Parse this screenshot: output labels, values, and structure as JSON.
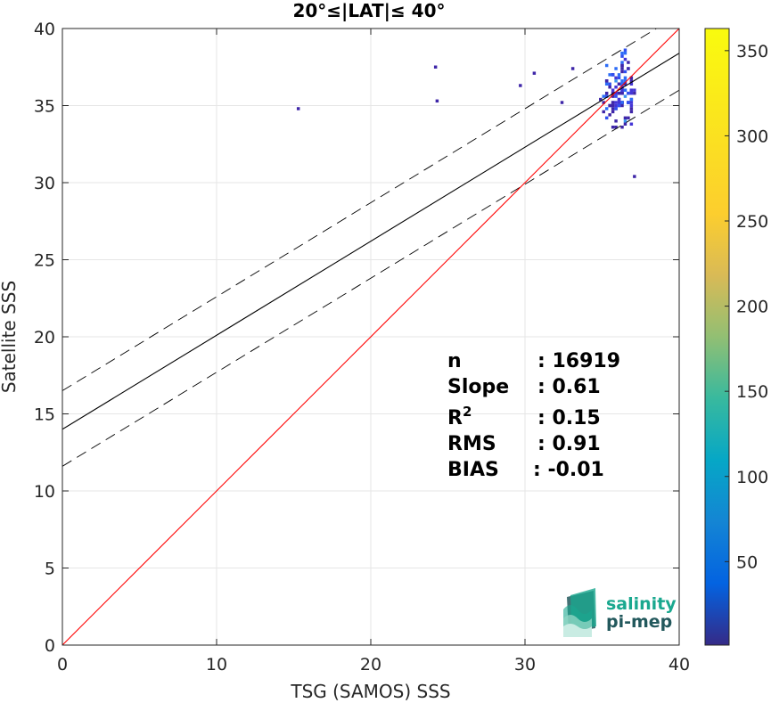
{
  "chart_data": {
    "type": "heatmap",
    "title": "20°≤|LAT|≤ 40°",
    "xlabel": "TSG (SAMOS) SSS",
    "ylabel": "Satellite SSS",
    "xlim": [
      0,
      40
    ],
    "ylim": [
      0,
      40
    ],
    "xticks": [
      "0",
      "10",
      "20",
      "30",
      "40"
    ],
    "yticks": [
      "0",
      "5",
      "10",
      "15",
      "20",
      "25",
      "30",
      "35",
      "40"
    ],
    "grid": true,
    "colorbar": {
      "range": [
        1,
        363
      ],
      "ticks": [
        "50",
        "100",
        "150",
        "200",
        "250",
        "300",
        "350"
      ],
      "colormap": "parula"
    },
    "cluster": {
      "x_range": [
        34.8,
        37.2
      ],
      "y_range": [
        32.5,
        38.9
      ],
      "center": [
        36.0,
        35.8
      ],
      "outliers": [
        [
          15.2,
          34.7
        ],
        [
          24.1,
          37.4
        ],
        [
          24.2,
          35.2
        ],
        [
          37.0,
          30.3
        ],
        [
          33.0,
          37.3
        ],
        [
          30.5,
          37.0
        ],
        [
          29.6,
          36.2
        ],
        [
          32.3,
          35.1
        ]
      ]
    },
    "lines": {
      "identity": {
        "slope": 1,
        "intercept": 0,
        "color": "#ff0000"
      },
      "regression": {
        "slope": 0.61,
        "intercept": 14.0,
        "color": "#000000",
        "style": "solid"
      },
      "upper_bound": {
        "slope": 0.61,
        "intercept": 16.5,
        "color": "#000000",
        "style": "dashed"
      },
      "lower_bound": {
        "slope": 0.61,
        "intercept": 11.6,
        "color": "#000000",
        "style": "dashed"
      }
    },
    "stats": [
      {
        "label": "n",
        "value": ": 16919"
      },
      {
        "label": "Slope",
        "value": ": 0.61"
      },
      {
        "label": "R",
        "sup": "2",
        "value": ": 0.15"
      },
      {
        "label": "RMS",
        "value": ": 0.91"
      },
      {
        "label": "BIAS",
        "value": ": -0.01"
      }
    ]
  },
  "logo": {
    "line1": "salinity",
    "line2": "pi-mep",
    "colors": {
      "teal": "#1aa88f",
      "dark": "#22585c"
    }
  }
}
